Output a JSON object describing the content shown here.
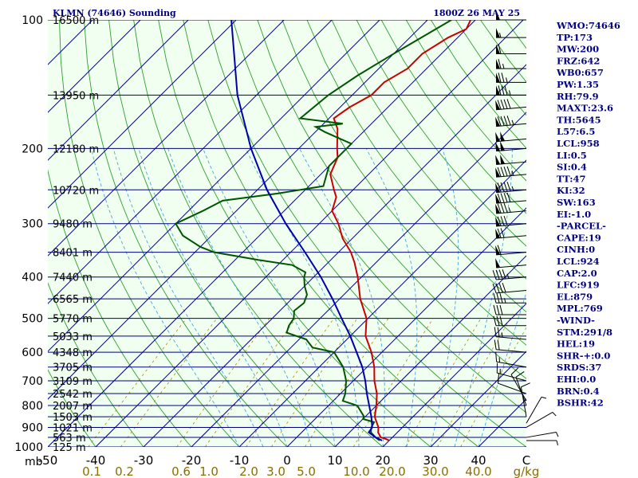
{
  "header": {
    "title": "KLMN (74646) Sounding",
    "datetime": "1800Z 26 MAY 25"
  },
  "chart_data": {
    "type": "line",
    "title": "KLMN (74646) Sounding",
    "subtitle": "1800Z 26 MAY 25",
    "xlabel_unit": "C",
    "ylabel_unit": "mb",
    "mixing_unit": "g/kg",
    "x_range": [
      -50,
      50
    ],
    "y_range_mb": [
      100,
      1000
    ],
    "y_scale": "log",
    "temperature_ticks": [
      "-50",
      "-40",
      "-30",
      "-20",
      "-10",
      "0",
      "10",
      "20",
      "30",
      "40",
      "C"
    ],
    "pressure_ticks": [
      "100",
      "200",
      "300",
      "400",
      "500",
      "600",
      "700",
      "800",
      "900",
      "1000"
    ],
    "mixing_ratio_ticks": [
      "0.1",
      "0.2",
      "0.6",
      "1.0",
      "2.0",
      "3.0",
      "5.0",
      "10.0",
      "20.0",
      "30.0",
      "40.0",
      "g/kg"
    ],
    "height_labels": [
      {
        "p": 100,
        "label": "16500 m"
      },
      {
        "p": 150,
        "label": "13950 m"
      },
      {
        "p": 200,
        "label": "12180 m"
      },
      {
        "p": 250,
        "label": "10720 m"
      },
      {
        "p": 300,
        "label": "9480 m"
      },
      {
        "p": 350,
        "label": "8401 m"
      },
      {
        "p": 400,
        "label": "7440 m"
      },
      {
        "p": 450,
        "label": "6565 m"
      },
      {
        "p": 500,
        "label": "5770 m"
      },
      {
        "p": 550,
        "label": "5033 m"
      },
      {
        "p": 600,
        "label": "4348 m"
      },
      {
        "p": 650,
        "label": "3705 m"
      },
      {
        "p": 700,
        "label": "3109 m"
      },
      {
        "p": 750,
        "label": "2542 m"
      },
      {
        "p": 800,
        "label": "2007 m"
      },
      {
        "p": 850,
        "label": "1503 m"
      },
      {
        "p": 900,
        "label": "1021 m"
      },
      {
        "p": 950,
        "label": "563 m"
      },
      {
        "p": 1000,
        "label": "125 m"
      }
    ],
    "series": [
      {
        "name": "temperature",
        "color": "#cc0000",
        "points": [
          [
            966,
            20
          ],
          [
            958,
            19
          ],
          [
            950,
            17.6
          ],
          [
            925,
            16
          ],
          [
            900,
            15
          ],
          [
            850,
            12
          ],
          [
            800,
            10
          ],
          [
            750,
            7.6
          ],
          [
            700,
            4.4
          ],
          [
            650,
            1.5
          ],
          [
            600,
            -2.2
          ],
          [
            550,
            -6.8
          ],
          [
            500,
            -10.3
          ],
          [
            450,
            -15.7
          ],
          [
            400,
            -20.8
          ],
          [
            370,
            -24.5
          ],
          [
            350,
            -27.4
          ],
          [
            325,
            -32
          ],
          [
            300,
            -36
          ],
          [
            280,
            -40
          ],
          [
            260,
            -42
          ],
          [
            250,
            -44
          ],
          [
            230,
            -48
          ],
          [
            210,
            -50
          ],
          [
            200,
            -52
          ],
          [
            180,
            -56
          ],
          [
            170,
            -59
          ],
          [
            160,
            -58
          ],
          [
            150,
            -56
          ],
          [
            140,
            -56
          ],
          [
            130,
            -54
          ],
          [
            120,
            -54
          ],
          [
            110,
            -52
          ],
          [
            105,
            -50
          ],
          [
            100,
            -51
          ]
        ]
      },
      {
        "name": "dewpoint",
        "color": "#005500",
        "points": [
          [
            966,
            18
          ],
          [
            950,
            16.5
          ],
          [
            925,
            14.5
          ],
          [
            900,
            13.5
          ],
          [
            875,
            13
          ],
          [
            860,
            10
          ],
          [
            850,
            9.8
          ],
          [
            800,
            6
          ],
          [
            780,
            2
          ],
          [
            750,
            1
          ],
          [
            700,
            -1.5
          ],
          [
            650,
            -5
          ],
          [
            600,
            -10
          ],
          [
            585,
            -15.5
          ],
          [
            560,
            -18.5
          ],
          [
            540,
            -24
          ],
          [
            520,
            -25
          ],
          [
            500,
            -25.5
          ],
          [
            480,
            -27
          ],
          [
            460,
            -26.6
          ],
          [
            440,
            -27.7
          ],
          [
            420,
            -30
          ],
          [
            400,
            -32
          ],
          [
            390,
            -32.7
          ],
          [
            375,
            -37
          ],
          [
            365,
            -45
          ],
          [
            350,
            -56
          ],
          [
            340,
            -60
          ],
          [
            320,
            -66
          ],
          [
            300,
            -70
          ],
          [
            280,
            -67
          ],
          [
            265,
            -65
          ],
          [
            255,
            -55
          ],
          [
            245,
            -47
          ],
          [
            220,
            -50
          ],
          [
            205,
            -50
          ],
          [
            195,
            -50
          ],
          [
            183,
            -58
          ],
          [
            178,
            -61
          ],
          [
            175,
            -56
          ],
          [
            170,
            -66
          ],
          [
            150,
            -65
          ],
          [
            135,
            -63
          ],
          [
            120,
            -60
          ],
          [
            100,
            -55
          ]
        ]
      },
      {
        "name": "parcel",
        "color": "#0000aa",
        "points": [
          [
            966,
            18.5
          ],
          [
            950,
            16.5
          ],
          [
            924,
            14
          ],
          [
            900,
            13.7
          ],
          [
            850,
            11.3
          ],
          [
            800,
            8.5
          ],
          [
            750,
            5.5
          ],
          [
            700,
            2.5
          ],
          [
            650,
            -1
          ],
          [
            600,
            -5.3
          ],
          [
            550,
            -10
          ],
          [
            500,
            -15.5
          ],
          [
            450,
            -21.5
          ],
          [
            400,
            -28.5
          ],
          [
            350,
            -37
          ],
          [
            300,
            -47
          ],
          [
            250,
            -58
          ],
          [
            200,
            -70
          ],
          [
            150,
            -84
          ],
          [
            100,
            -101
          ]
        ]
      }
    ],
    "wind_barbs": [
      {
        "p": 100,
        "dir": 270,
        "kt": 50
      },
      {
        "p": 110,
        "dir": 270,
        "kt": 55
      },
      {
        "p": 120,
        "dir": 270,
        "kt": 60
      },
      {
        "p": 130,
        "dir": 270,
        "kt": 65
      },
      {
        "p": 140,
        "dir": 270,
        "kt": 75
      },
      {
        "p": 150,
        "dir": 270,
        "kt": 85
      },
      {
        "p": 160,
        "dir": 265,
        "kt": 90
      },
      {
        "p": 175,
        "dir": 265,
        "kt": 95
      },
      {
        "p": 190,
        "dir": 265,
        "kt": 100
      },
      {
        "p": 200,
        "dir": 265,
        "kt": 100
      },
      {
        "p": 215,
        "dir": 265,
        "kt": 100
      },
      {
        "p": 230,
        "dir": 265,
        "kt": 95
      },
      {
        "p": 250,
        "dir": 265,
        "kt": 95
      },
      {
        "p": 265,
        "dir": 265,
        "kt": 90
      },
      {
        "p": 280,
        "dir": 265,
        "kt": 85
      },
      {
        "p": 300,
        "dir": 265,
        "kt": 80
      },
      {
        "p": 320,
        "dir": 265,
        "kt": 70
      },
      {
        "p": 350,
        "dir": 265,
        "kt": 60
      },
      {
        "p": 375,
        "dir": 265,
        "kt": 50
      },
      {
        "p": 400,
        "dir": 265,
        "kt": 45
      },
      {
        "p": 430,
        "dir": 265,
        "kt": 40
      },
      {
        "p": 460,
        "dir": 270,
        "kt": 35
      },
      {
        "p": 490,
        "dir": 270,
        "kt": 30
      },
      {
        "p": 520,
        "dir": 270,
        "kt": 30
      },
      {
        "p": 560,
        "dir": 275,
        "kt": 25
      },
      {
        "p": 600,
        "dir": 275,
        "kt": 20
      },
      {
        "p": 650,
        "dir": 280,
        "kt": 15
      },
      {
        "p": 700,
        "dir": 285,
        "kt": 15
      },
      {
        "p": 750,
        "dir": 290,
        "kt": 10
      },
      {
        "p": 780,
        "dir": 330,
        "kt": 10
      },
      {
        "p": 800,
        "dir": 340,
        "kt": 10
      },
      {
        "p": 850,
        "dir": 350,
        "kt": 10
      },
      {
        "p": 880,
        "dir": 30,
        "kt": 5
      },
      {
        "p": 900,
        "dir": 60,
        "kt": 5
      },
      {
        "p": 950,
        "dir": 80,
        "kt": 5
      },
      {
        "p": 966,
        "dir": 90,
        "kt": 5
      }
    ]
  },
  "indices": [
    "WMO:74646",
    "TP:173",
    "MW:200",
    "FRZ:642",
    "WB0:657",
    "PW:1.35",
    "RH:79.9",
    "MAXT:23.6",
    "TH:5645",
    "L57:6.5",
    "LCL:958",
    "LI:0.5",
    "SI:0.4",
    "TT:47",
    "KI:32",
    "SW:163",
    "EI:-1.0",
    "-PARCEL-",
    "CAPE:19",
    "CINH:0",
    "LCL:924",
    "CAP:2.0",
    "LFC:919",
    "EL:879",
    "MPL:769",
    "-WIND-",
    "STM:291/8",
    "HEL:19",
    "SHR-+:0.0",
    "SRDS:37",
    "EHI:0.0",
    "BRN:0.4",
    "BSHR:42"
  ],
  "colors": {
    "isobar": "#000080",
    "isotherm": "#000080",
    "dry_adiabat": "#2e9e2e",
    "moist_adiabat": "#4aa6d8",
    "mixing_ratio": "#b08a00",
    "plot_bg": "#f0fff0"
  }
}
